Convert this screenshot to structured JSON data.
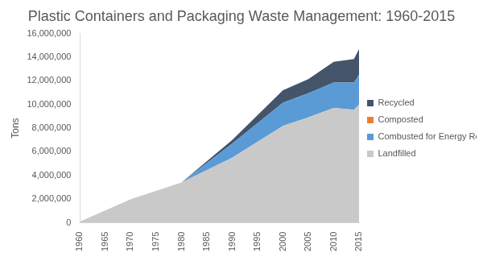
{
  "chart_data": {
    "type": "area",
    "title": "Plastic Containers and Packaging Waste Management: 1960-2015",
    "y_label": "Tons",
    "x": [
      1960,
      1970,
      1980,
      1990,
      2000,
      2005,
      2010,
      2014,
      2015
    ],
    "series": [
      {
        "name": "Landfilled",
        "color": "#c9c9c9",
        "values": [
          100000,
          2000000,
          3400000,
          5500000,
          8200000,
          8900000,
          9700000,
          9550000,
          9980000
        ]
      },
      {
        "name": "Combusted for Energy Recovery",
        "color": "#5b9bd5",
        "values": [
          0,
          0,
          0,
          1200000,
          1950000,
          2050000,
          2150000,
          2300000,
          2530000
        ]
      },
      {
        "name": "Composted",
        "color": "#ed7d31",
        "values": [
          0,
          0,
          0,
          0,
          0,
          0,
          0,
          0,
          0
        ]
      },
      {
        "name": "Recycled",
        "color": "#44546a",
        "values": [
          0,
          0,
          0,
          300000,
          1050000,
          1200000,
          1750000,
          2000000,
          2170000
        ]
      }
    ],
    "stacked": true,
    "legend": "right",
    "grid": false,
    "xlim": [
      1960,
      2015
    ],
    "xticks": [
      1960,
      1965,
      1970,
      1975,
      1980,
      1985,
      1990,
      1995,
      2000,
      2005,
      2010,
      2015
    ],
    "ylim": [
      0,
      16000000
    ],
    "yticks": [
      0,
      {
        "value": 2000000,
        "label": "2,000,000"
      },
      {
        "value": 4000000,
        "label": "4,000,000"
      },
      {
        "value": 6000000,
        "label": "6,000,000"
      },
      {
        "value": 8000000,
        "label": "8,000,000"
      },
      {
        "value": 10000000,
        "label": "10,000,000"
      },
      {
        "value": 12000000,
        "label": "12,000,000"
      },
      {
        "value": 14000000,
        "label": "14,000,000"
      },
      {
        "value": 16000000,
        "label": "16,000,000"
      }
    ]
  }
}
